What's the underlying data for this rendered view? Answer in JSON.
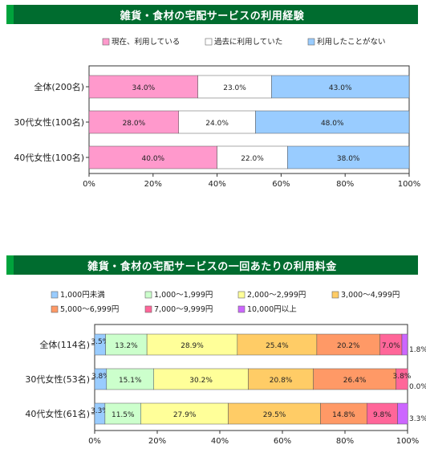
{
  "chart_data": [
    {
      "type": "bar",
      "orientation": "horizontal",
      "stacked": true,
      "title": "雑貨・食材の宅配サービスの利用経験",
      "categories": [
        "全体(200名)",
        "30代女性(100名)",
        "40代女性(100名)"
      ],
      "series": [
        {
          "name": "現在、利用している",
          "color": "#ff99cc",
          "values": [
            34.0,
            28.0,
            40.0
          ]
        },
        {
          "name": "過去に利用していた",
          "color": "#ffffff",
          "values": [
            23.0,
            24.0,
            22.0
          ]
        },
        {
          "name": "利用したことがない",
          "color": "#99ccff",
          "values": [
            43.0,
            48.0,
            38.0
          ]
        }
      ],
      "xlim": [
        0,
        100
      ],
      "xticks": [
        "0%",
        "20%",
        "40%",
        "60%",
        "80%",
        "100%"
      ],
      "value_suffix": "%",
      "legend_position": "top"
    },
    {
      "type": "bar",
      "orientation": "horizontal",
      "stacked": true,
      "title": "雑貨・食材の宅配サービスの一回あたりの利用料金",
      "categories": [
        "全体(114名)",
        "30代女性(53名)",
        "40代女性(61名)"
      ],
      "series": [
        {
          "name": "1,000円未満",
          "color": "#99ccff",
          "values": [
            3.5,
            3.8,
            3.3
          ]
        },
        {
          "name": "1,000～1,999円",
          "color": "#ccffcc",
          "values": [
            13.2,
            15.1,
            11.5
          ]
        },
        {
          "name": "2,000～2,999円",
          "color": "#ffff99",
          "values": [
            28.9,
            30.2,
            27.9
          ]
        },
        {
          "name": "3,000～4,999円",
          "color": "#ffcc66",
          "values": [
            25.4,
            20.8,
            29.5
          ]
        },
        {
          "name": "5,000～6,999円",
          "color": "#ff9966",
          "values": [
            20.2,
            26.4,
            14.8
          ]
        },
        {
          "name": "7,000～9,999円",
          "color": "#ff6699",
          "values": [
            7.0,
            3.8,
            9.8
          ]
        },
        {
          "name": "10,000円以上",
          "color": "#cc66ff",
          "values": [
            1.8,
            0.0,
            3.3
          ]
        }
      ],
      "xlim": [
        0,
        100
      ],
      "xticks": [
        "0%",
        "20%",
        "40%",
        "60%",
        "80%",
        "100%"
      ],
      "value_suffix": "%",
      "legend_position": "top"
    }
  ]
}
